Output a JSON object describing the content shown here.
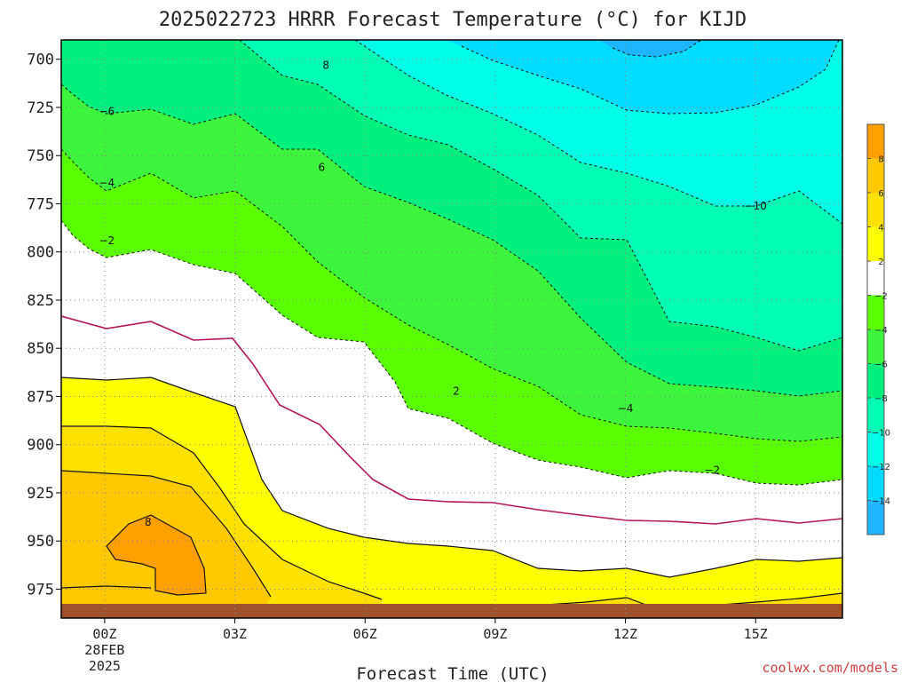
{
  "chart_data": {
    "type": "contour",
    "title": "2025022723 HRRR Forecast Temperature (°C) for KIJD",
    "xlabel": "Forecast Time (UTC)",
    "credit": "coolwx.com/models",
    "x_ticks": [
      {
        "hour": 0,
        "label": "00Z",
        "sub1": "28FEB",
        "sub2": "2025"
      },
      {
        "hour": 3,
        "label": "03Z",
        "sub1": "",
        "sub2": ""
      },
      {
        "hour": 6,
        "label": "06Z",
        "sub1": "",
        "sub2": ""
      },
      {
        "hour": 9,
        "label": "09Z",
        "sub1": "",
        "sub2": ""
      },
      {
        "hour": 12,
        "label": "12Z",
        "sub1": "",
        "sub2": ""
      },
      {
        "hour": 15,
        "label": "15Z",
        "sub1": "",
        "sub2": ""
      }
    ],
    "x_range_hours": [
      -1,
      17
    ],
    "y_ticks_hpa": [
      700,
      725,
      750,
      775,
      800,
      825,
      850,
      875,
      900,
      925,
      950,
      975
    ],
    "y_range_hpa": [
      690,
      990
    ],
    "surface_pressure_hpa": 985,
    "colorbar": {
      "bins": [
        {
          "low": -16,
          "high": -14,
          "color": "#1eb4ff"
        },
        {
          "low": -14,
          "high": -12,
          "color": "#00dcff"
        },
        {
          "low": -12,
          "high": -10,
          "color": "#00ffe6"
        },
        {
          "low": -10,
          "high": -8,
          "color": "#00ffb4"
        },
        {
          "low": -8,
          "high": -6,
          "color": "#00f07d"
        },
        {
          "low": -6,
          "high": -4,
          "color": "#3cf53c"
        },
        {
          "low": -4,
          "high": -2,
          "color": "#5aff00"
        },
        {
          "low": -2,
          "high": 2,
          "color": "#ffffff"
        },
        {
          "low": 2,
          "high": 4,
          "color": "#ffff00"
        },
        {
          "low": 4,
          "high": 6,
          "color": "#ffe100"
        },
        {
          "low": 6,
          "high": 8,
          "color": "#ffc800"
        },
        {
          "low": 8,
          "high": 10,
          "color": "#ffa000"
        }
      ],
      "labels": [
        "8",
        "6",
        "4",
        "2",
        "−2",
        "−4",
        "−6",
        "−8",
        "−10",
        "−12",
        "−14"
      ]
    },
    "contour_labels": [
      {
        "text": "8",
        "hour": 5.1,
        "hpa": 705
      },
      {
        "text": "−6",
        "hour": 0.05,
        "hpa": 729
      },
      {
        "text": "6",
        "hour": 5.0,
        "hpa": 758
      },
      {
        "text": "−4",
        "hour": 0.05,
        "hpa": 766
      },
      {
        "text": "−10",
        "hour": 15.0,
        "hpa": 778
      },
      {
        "text": "−2",
        "hour": 0.05,
        "hpa": 796
      },
      {
        "text": "2",
        "hour": 8.1,
        "hpa": 874
      },
      {
        "text": "−4",
        "hour": 12.0,
        "hpa": 883
      },
      {
        "text": "−2",
        "hour": 14.0,
        "hpa": 915
      },
      {
        "text": "8",
        "hour": 1.0,
        "hpa": 942
      }
    ]
  }
}
